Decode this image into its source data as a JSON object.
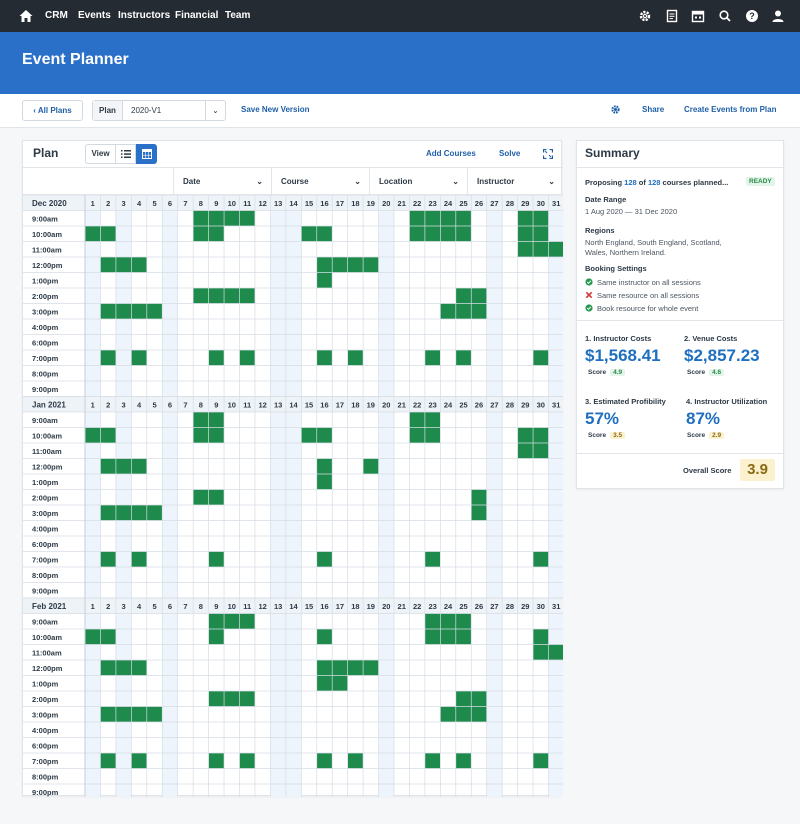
{
  "nav": {
    "items": [
      "CRM",
      "Events",
      "Instructors",
      "Financial",
      "Team"
    ]
  },
  "page": {
    "title": "Event Planner"
  },
  "toolbar": {
    "back_label": "All Plans",
    "plan_label": "Plan",
    "plan_value": "2020-V1",
    "save_label": "Save New Version",
    "share_label": "Share",
    "create_label": "Create Events from Plan"
  },
  "plan": {
    "title": "Plan",
    "view_label": "View",
    "add_courses": "Add Courses",
    "solve": "Solve",
    "filters": [
      "Date",
      "Course",
      "Location",
      "Instructor"
    ],
    "times": [
      "9:00am",
      "10:00am",
      "11:00am",
      "12:00pm",
      "1:00pm",
      "2:00pm",
      "3:00pm",
      "4:00pm",
      "6:00pm",
      "7:00pm",
      "8:00pm",
      "9:00pm"
    ],
    "days": [
      "1",
      "2",
      "3",
      "4",
      "5",
      "6",
      "7",
      "8",
      "9",
      "10",
      "11",
      "12",
      "13",
      "14",
      "15",
      "16",
      "17",
      "18",
      "19",
      "20",
      "21",
      "22",
      "23",
      "24",
      "25",
      "26",
      "27",
      "28",
      "29",
      "30",
      "31"
    ],
    "months": [
      {
        "label": "Dec 2020",
        "cells": [
          [
            8,
            9,
            10,
            11,
            22,
            23,
            24,
            25,
            29,
            30
          ],
          [
            1,
            2,
            8,
            9,
            15,
            16,
            22,
            23,
            24,
            25,
            29,
            30
          ],
          [
            29,
            30,
            31
          ],
          [
            2,
            3,
            4,
            16,
            17,
            18,
            19
          ],
          [
            16
          ],
          [
            8,
            9,
            10,
            11,
            25,
            26
          ],
          [
            2,
            3,
            4,
            5,
            24,
            25,
            26
          ],
          [],
          [],
          [
            2,
            4,
            9,
            11,
            16,
            18,
            23,
            25,
            30
          ],
          [],
          []
        ]
      },
      {
        "label": "Jan 2021",
        "cells": [
          [
            8,
            9,
            22,
            23
          ],
          [
            1,
            2,
            8,
            9,
            15,
            16,
            22,
            23,
            29,
            30
          ],
          [
            29,
            30
          ],
          [
            2,
            3,
            4,
            16,
            19
          ],
          [
            16
          ],
          [
            8,
            9,
            26
          ],
          [
            2,
            3,
            4,
            5,
            26
          ],
          [],
          [],
          [
            2,
            4,
            9,
            16,
            23,
            30
          ],
          [],
          []
        ]
      },
      {
        "label": "Feb 2021",
        "cells": [
          [
            9,
            10,
            11,
            23,
            24,
            25
          ],
          [
            1,
            2,
            9,
            16,
            23,
            24,
            25,
            30
          ],
          [
            30,
            31
          ],
          [
            2,
            3,
            4,
            16,
            17,
            18,
            19
          ],
          [
            16,
            17
          ],
          [
            9,
            10,
            11,
            25,
            26
          ],
          [
            2,
            3,
            4,
            5,
            24,
            25,
            26
          ],
          [],
          [],
          [
            2,
            4,
            9,
            11,
            16,
            18,
            23,
            25,
            30
          ],
          [],
          []
        ]
      }
    ],
    "shaded_days": [
      1,
      3,
      6,
      13,
      14,
      20,
      27,
      31
    ],
    "fill_color": "#1e8a4c"
  },
  "summary": {
    "title": "Summary",
    "proposing_prefix": "Proposing ",
    "proposing_count": "128",
    "proposing_of": " of ",
    "proposing_total": "128",
    "proposing_suffix": " courses planned...",
    "status": "READY",
    "date_range_label": "Date Range",
    "date_range": "1 Aug 2020 — 31 Dec 2020",
    "regions_label": "Regions",
    "regions_line1": "North England, South England, Scotland,",
    "regions_line2": "Wales, Northern Ireland.",
    "booking_label": "Booking Settings",
    "booking": [
      {
        "text": "Same instructor on all sessions",
        "state": "yes"
      },
      {
        "text": "Same resource on all sessions",
        "state": "no"
      },
      {
        "text": "Book resource for whole event",
        "state": "yes"
      }
    ],
    "metrics": [
      {
        "label": "1. Instructor Costs",
        "value": "$1,568.41",
        "score_label": "Score",
        "score": "4.9",
        "score_color": "#e3f4e8",
        "score_text": "#2a8a4a"
      },
      {
        "label": "2. Venue Costs",
        "value": "$2,857.23",
        "score_label": "Score",
        "score": "4.6",
        "score_color": "#e3f4e8",
        "score_text": "#2a8a4a"
      },
      {
        "label": "3. Estimated Profibility",
        "value": "57%",
        "score_label": "Score",
        "score": "3.5",
        "score_color": "#fbf1cf",
        "score_text": "#8a6a12"
      },
      {
        "label": "4. Instructor Utilization",
        "value": "87%",
        "score_label": "Score",
        "score": "2.9",
        "score_color": "#fbf1cf",
        "score_text": "#8a6a12"
      }
    ],
    "overall_label": "Overall Score",
    "overall": "3.9"
  },
  "colors": {
    "nav_bg": "#252b33",
    "band_bg": "#2a70c8",
    "accent": "#1f5fa8"
  }
}
